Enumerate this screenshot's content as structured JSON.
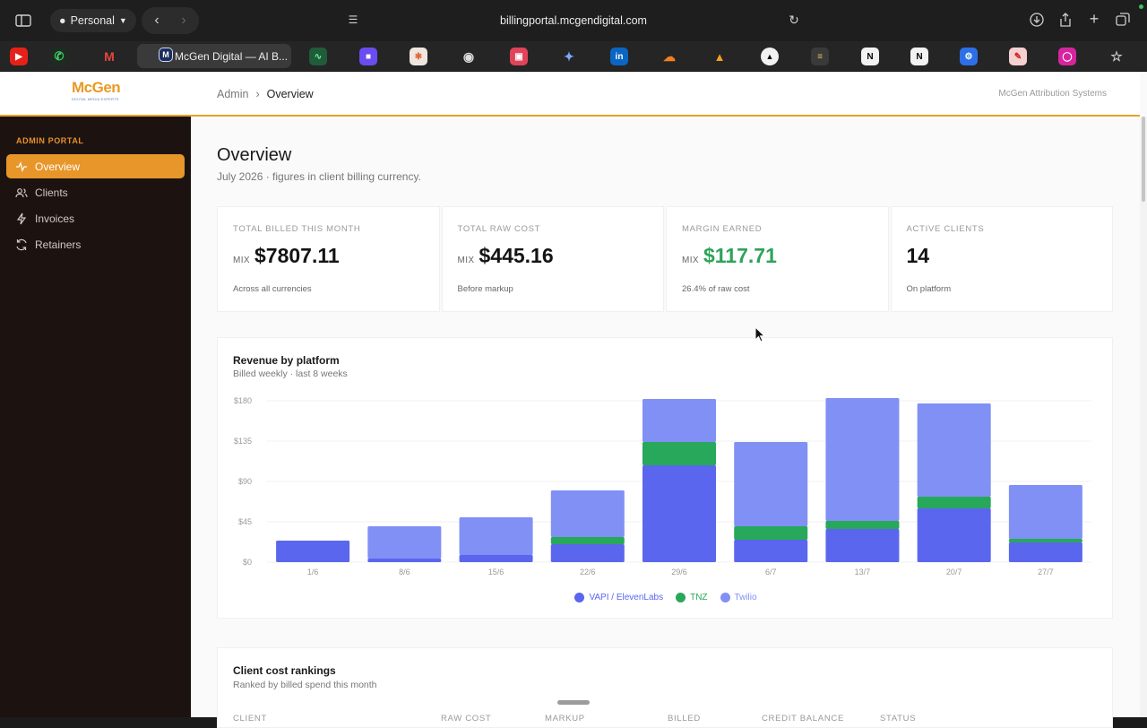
{
  "browser": {
    "profile": "Personal",
    "url": "billingportal.mcgendigital.com",
    "active_tab": "McGen Digital — AI B...",
    "favicons": [
      "youtube-icon",
      "whatsapp-icon",
      "gmail-icon",
      "mcgen-icon",
      "activity-icon",
      "chat-icon",
      "star-burst-icon",
      "globe-icon",
      "crop-icon",
      "gemini-icon",
      "linkedin-icon",
      "cloudflare-icon",
      "analytics-icon",
      "vercel-icon",
      "stack-icon",
      "notion-icon",
      "notion2-icon",
      "gear-icon",
      "pdf-icon",
      "instagram-icon"
    ]
  },
  "header": {
    "logo": "McGen",
    "logo_sub": "DIGITAL MEDIA EXPERTS",
    "breadcrumb_root": "Admin",
    "breadcrumb_sep": "›",
    "breadcrumb_current": "Overview",
    "brand_right": "McGen Attribution Systems"
  },
  "sidebar": {
    "heading": "ADMIN PORTAL",
    "items": [
      {
        "label": "Overview",
        "icon": "pulse-icon",
        "active": true
      },
      {
        "label": "Clients",
        "icon": "users-icon",
        "active": false
      },
      {
        "label": "Invoices",
        "icon": "bolt-icon",
        "active": false
      },
      {
        "label": "Retainers",
        "icon": "refresh-icon",
        "active": false
      }
    ]
  },
  "main": {
    "title": "Overview",
    "subtitle": "July 2026 · figures in client billing currency."
  },
  "stats": [
    {
      "label": "TOTAL BILLED THIS MONTH",
      "currency": "MIX",
      "value": "$7807.11",
      "note": "Across all currencies"
    },
    {
      "label": "TOTAL RAW COST",
      "currency": "MIX",
      "value": "$445.16",
      "note": "Before markup"
    },
    {
      "label": "MARGIN EARNED",
      "currency": "MIX",
      "value": "$117.71",
      "note": "26.4% of raw cost"
    },
    {
      "label": "ACTIVE CLIENTS",
      "currency": "",
      "value": "14",
      "note": "On platform"
    }
  ],
  "revenue_card": {
    "title": "Revenue by platform",
    "subtitle": "Billed weekly · last 8 weeks"
  },
  "chart_data": {
    "type": "bar",
    "stacked": true,
    "categories": [
      "1/6",
      "8/6",
      "15/6",
      "22/6",
      "29/6",
      "6/7",
      "13/7",
      "20/7",
      "27/7"
    ],
    "series": [
      {
        "name": "VAPI / ElevenLabs",
        "color": "#5a66ee",
        "values": [
          24,
          4,
          8,
          20,
          108,
          25,
          37,
          60,
          22
        ]
      },
      {
        "name": "TNZ",
        "color": "#27a85a",
        "values": [
          0,
          0,
          0,
          8,
          26,
          15,
          9,
          13,
          4
        ]
      },
      {
        "name": "Twilio",
        "color": "#8090f4",
        "values": [
          0,
          36,
          42,
          52,
          48,
          94,
          137,
          104,
          60
        ]
      }
    ],
    "yticks": [
      "$0",
      "$45",
      "$90",
      "$135",
      "$180"
    ],
    "ylim": [
      0,
      180
    ],
    "grid": true,
    "legend_position": "bottom-center"
  },
  "rankings": {
    "title": "Client cost rankings",
    "subtitle": "Ranked by billed spend this month",
    "columns": [
      "CLIENT",
      "RAW COST",
      "MARKUP",
      "BILLED",
      "CREDIT BALANCE",
      "STATUS"
    ]
  }
}
